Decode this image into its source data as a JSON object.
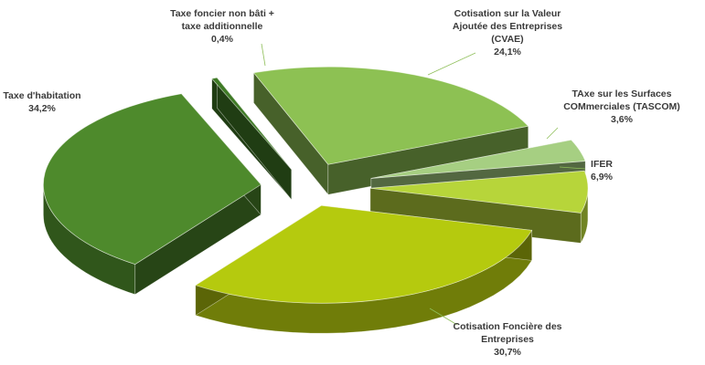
{
  "chart_data": {
    "type": "pie",
    "style": "3d-exploded",
    "legend": "none",
    "slices": [
      {
        "lines": [
          "Cotisation sur la Valeur",
          "Ajoutée des Entreprises",
          "(CVAE)"
        ],
        "pct_label": "24,1%",
        "value": 24.1,
        "color": "#8dc153"
      },
      {
        "lines": [
          "TAxe sur les Surfaces",
          "COMmerciales (TASCOM)"
        ],
        "pct_label": "3,6%",
        "value": 3.6,
        "color": "#a6cf82"
      },
      {
        "lines": [
          "IFER"
        ],
        "pct_label": "6,9%",
        "value": 6.9,
        "color": "#b7d53a"
      },
      {
        "lines": [
          "Cotisation Foncière des",
          "Entreprises"
        ],
        "pct_label": "30,7%",
        "value": 30.7,
        "color": "#b5ca0e"
      },
      {
        "lines": [
          "Taxe d'habitation"
        ],
        "pct_label": "34,2%",
        "value": 34.2,
        "color": "#4e8a2c"
      },
      {
        "lines": [
          "Taxe foncier non bâti +",
          "taxe additionnelle"
        ],
        "pct_label": "0,4%",
        "value": 0.4,
        "color": "#3f7a26"
      }
    ]
  }
}
